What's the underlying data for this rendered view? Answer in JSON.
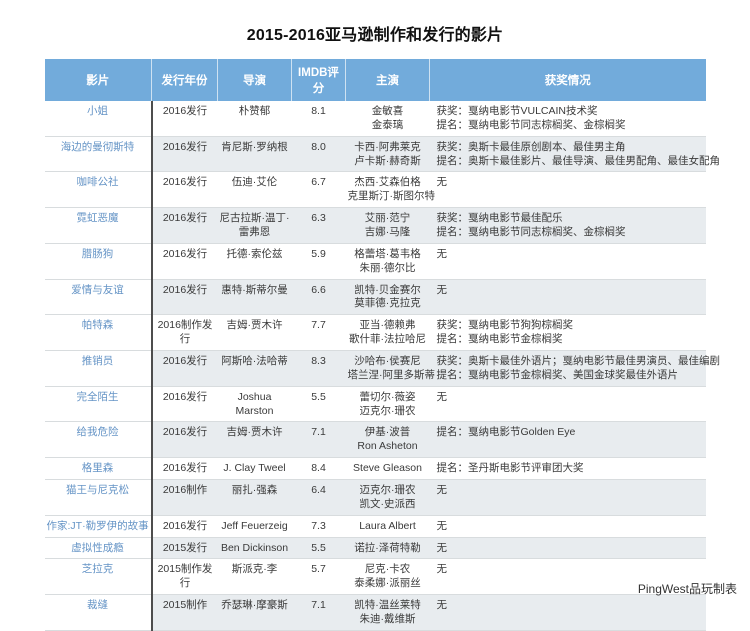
{
  "title": "2015-2016亚马逊制作和发行的影片",
  "credit": "PingWest品玩制表",
  "colors": {
    "header_bg": "#72abdb",
    "header_text": "#ffffff",
    "stripe_bg": "#e8ecef",
    "film_title_color": "#6594c6",
    "divider_color": "#4d4d4d",
    "body_text": "#3a3a3a"
  },
  "chart_data": {
    "type": "table",
    "title": "2015-2016亚马逊制作和发行的影片",
    "columns": [
      "影片",
      "发行年份",
      "导演",
      "IMDB评分",
      "主演",
      "获奖情况"
    ],
    "rows": [
      {
        "film": "小姐",
        "year": [
          "2016发行"
        ],
        "director": [
          "朴赞郁"
        ],
        "imdb": "8.1",
        "cast": [
          "金敏喜",
          "金泰璃"
        ],
        "awards": [
          "获奖：戛纳电影节VULCAIN技术奖",
          "提名：戛纳电影节同志棕榈奖、金棕榈奖"
        ]
      },
      {
        "film": "海边的曼彻斯特",
        "year": [
          "2016发行"
        ],
        "director": [
          "肯尼斯·罗纳根"
        ],
        "imdb": "8.0",
        "cast": [
          "卡西·阿弗莱克",
          "卢卡斯·赫奇斯"
        ],
        "awards": [
          "获奖：奥斯卡最佳原创剧本、最佳男主角",
          "提名：奥斯卡最佳影片、最佳导演、最佳男配角、最佳女配角"
        ]
      },
      {
        "film": "咖啡公社",
        "year": [
          "2016发行"
        ],
        "director": [
          "伍迪·艾伦"
        ],
        "imdb": "6.7",
        "cast": [
          "杰西·艾森伯格",
          "克里斯汀·斯图尔特"
        ],
        "awards": [
          "无"
        ]
      },
      {
        "film": "霓虹恶魔",
        "year": [
          "2016发行"
        ],
        "director": [
          "尼古拉斯·温丁·",
          "雷弗恩"
        ],
        "imdb": "6.3",
        "cast": [
          "艾丽·范宁",
          "吉娜·马隆"
        ],
        "awards": [
          "获奖：戛纳电影节最佳配乐",
          "提名：戛纳电影节同志棕榈奖、金棕榈奖"
        ]
      },
      {
        "film": "腊肠狗",
        "year": [
          "2016发行"
        ],
        "director": [
          "托德·索伦兹"
        ],
        "imdb": "5.9",
        "cast": [
          "格蕾塔·葛韦格",
          "朱丽·德尔比"
        ],
        "awards": [
          "无"
        ]
      },
      {
        "film": "爱情与友谊",
        "year": [
          "2016发行"
        ],
        "director": [
          "惠特·斯蒂尔曼"
        ],
        "imdb": "6.6",
        "cast": [
          "凯特·贝金赛尔",
          "莫菲德·克拉克"
        ],
        "awards": [
          "无"
        ]
      },
      {
        "film": "帕特森",
        "year": [
          "2016制作发",
          "行"
        ],
        "director": [
          "吉姆·贾木许"
        ],
        "imdb": "7.7",
        "cast": [
          "亚当·德赖弗",
          "歌什菲·法拉哈尼"
        ],
        "awards": [
          "获奖：戛纳电影节狗狗棕榈奖",
          "提名：戛纳电影节金棕榈奖"
        ]
      },
      {
        "film": "推销员",
        "year": [
          "2016发行"
        ],
        "director": [
          "阿斯哈·法哈蒂"
        ],
        "imdb": "8.3",
        "cast": [
          "沙哈布·侯赛尼",
          "塔兰涅·阿里多斯蒂"
        ],
        "awards": [
          "获奖：奥斯卡最佳外语片；戛纳电影节最佳男演员、最佳编剧",
          "提名：戛纳电影节金棕榈奖、美国金球奖最佳外语片"
        ]
      },
      {
        "film": "完全陌生",
        "year": [
          "2016发行"
        ],
        "director": [
          "Joshua",
          "Marston"
        ],
        "imdb": "5.5",
        "cast": [
          "蕾切尔·薇姿",
          "迈克尔·珊农"
        ],
        "awards": [
          "无"
        ]
      },
      {
        "film": "给我危险",
        "year": [
          "2016发行"
        ],
        "director": [
          "吉姆·贾木许"
        ],
        "imdb": "7.1",
        "cast": [
          "伊基·波普",
          "Ron Asheton"
        ],
        "awards": [
          "提名：戛纳电影节Golden Eye"
        ]
      },
      {
        "film": "格里森",
        "year": [
          "2016发行"
        ],
        "director": [
          "J. Clay Tweel"
        ],
        "imdb": "8.4",
        "cast": [
          "Steve Gleason"
        ],
        "awards": [
          "提名：圣丹斯电影节评审团大奖"
        ]
      },
      {
        "film": "猫王与尼克松",
        "year": [
          "2016制作"
        ],
        "director": [
          "丽扎·强森"
        ],
        "imdb": "6.4",
        "cast": [
          "迈克尔·珊农",
          "凯文·史派西"
        ],
        "awards": [
          "无"
        ]
      },
      {
        "film": "作家:JT·勒罗伊的故事",
        "year": [
          "2016发行"
        ],
        "director": [
          "Jeff Feuerzeig"
        ],
        "imdb": "7.3",
        "cast": [
          "Laura Albert"
        ],
        "awards": [
          "无"
        ]
      },
      {
        "film": "虚拟性成瘾",
        "year": [
          "2015发行"
        ],
        "director": [
          "Ben Dickinson"
        ],
        "imdb": "5.5",
        "cast": [
          "诺拉·泽荷特勒"
        ],
        "awards": [
          "无"
        ]
      },
      {
        "film": "芝拉克",
        "year": [
          "2015制作发",
          "行"
        ],
        "director": [
          "斯派克·李"
        ],
        "imdb": "5.7",
        "cast": [
          "尼克·卡农",
          "泰柔娜·派丽丝"
        ],
        "awards": [
          "无"
        ]
      },
      {
        "film": "裁缝",
        "year": [
          "2015制作"
        ],
        "director": [
          "乔瑟琳·摩豪斯"
        ],
        "imdb": "7.1",
        "cast": [
          "凯特·温丝莱特",
          "朱迪·戴维斯"
        ],
        "awards": [
          "无"
        ]
      }
    ]
  }
}
